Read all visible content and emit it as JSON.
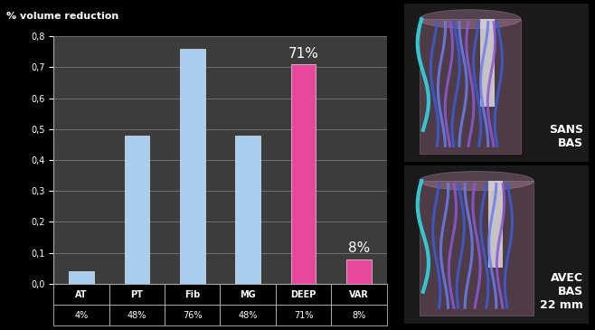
{
  "chart_data": {
    "type": "bar",
    "y_label": "% volume reduction",
    "categories": [
      "AT",
      "PT",
      "Fib",
      "MG",
      "DEEP",
      "VAR"
    ],
    "values": [
      0.04,
      0.48,
      0.76,
      0.48,
      0.71,
      0.08
    ],
    "colors": [
      "#a9cdef",
      "#a9cdef",
      "#a9cdef",
      "#a9cdef",
      "#e8489c",
      "#e8489c"
    ],
    "value_labels": [
      "4%",
      "48%",
      "76%",
      "48%",
      "71%",
      "8%"
    ],
    "annotations": [
      {
        "category": "DEEP",
        "text": "71%"
      },
      {
        "category": "VAR",
        "text": "8%"
      }
    ],
    "ylim": [
      0,
      0.8
    ],
    "yticks": [
      {
        "value": 0,
        "label": "0,0"
      },
      {
        "value": 0.1,
        "label": "0,1"
      },
      {
        "value": 0.2,
        "label": "0,2"
      },
      {
        "value": 0.3,
        "label": "0,3"
      },
      {
        "value": 0.4,
        "label": "0,4"
      },
      {
        "value": 0.5,
        "label": "0,5"
      },
      {
        "value": 0.6,
        "label": "0,6"
      },
      {
        "value": 0.7,
        "label": "0,7"
      },
      {
        "value": 0.8,
        "label": "0,8"
      }
    ],
    "grid": true,
    "tick_labels": "y",
    "side_panels": [
      "SANS\nBAS",
      "AVEC\nBAS\n22 mm"
    ]
  }
}
